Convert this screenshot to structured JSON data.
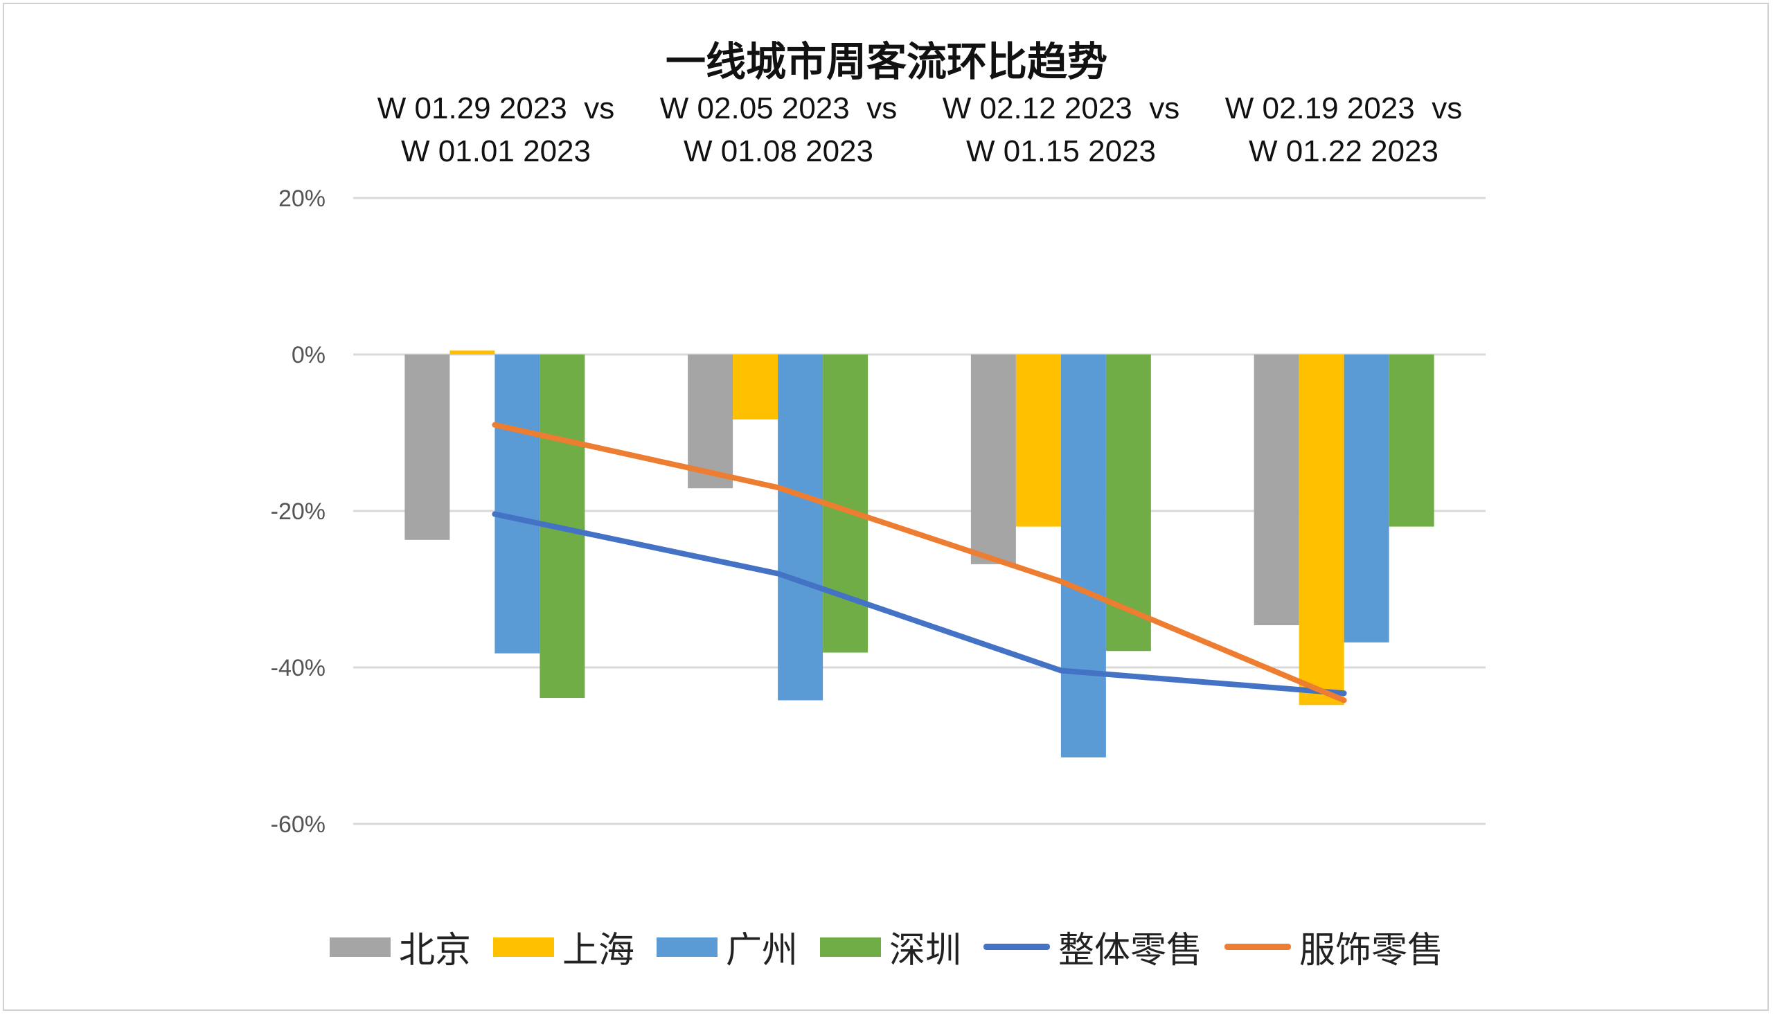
{
  "chart_data": {
    "type": "bar",
    "title": "一线城市周客流环比趋势",
    "categories": [
      [
        "W 01.29 2023  vs",
        "W 01.01 2023"
      ],
      [
        "W 02.05 2023  vs",
        "W 01.08 2023"
      ],
      [
        "W 02.12 2023  vs",
        "W 01.15 2023"
      ],
      [
        "W 02.19 2023  vs",
        "W 01.22 2023"
      ]
    ],
    "ylim": [
      -0.6,
      0.2
    ],
    "yticks": [
      0.2,
      0,
      -0.2,
      -0.4,
      -0.6
    ],
    "ytick_labels": [
      "20%",
      "0%",
      "-20%",
      "-40%",
      "-60%"
    ],
    "grid": true,
    "legend_position": "bottom",
    "bar_series": [
      {
        "name": "北京",
        "color": "#a5a5a5",
        "values": [
          -0.237,
          -0.171,
          -0.268,
          -0.346
        ]
      },
      {
        "name": "上海",
        "color": "#ffc000",
        "values": [
          0.005,
          -0.083,
          -0.22,
          -0.448
        ]
      },
      {
        "name": "广州",
        "color": "#5b9bd5",
        "values": [
          -0.382,
          -0.442,
          -0.515,
          -0.368
        ]
      },
      {
        "name": "深圳",
        "color": "#70ad47",
        "values": [
          -0.439,
          -0.381,
          -0.379,
          -0.22
        ]
      }
    ],
    "line_series": [
      {
        "name": "整体零售",
        "color": "#4472c4",
        "values": [
          -0.204,
          -0.28,
          -0.404,
          -0.433
        ]
      },
      {
        "name": "服饰零售",
        "color": "#ed7d31",
        "values": [
          -0.09,
          -0.17,
          -0.29,
          -0.442
        ]
      }
    ]
  }
}
